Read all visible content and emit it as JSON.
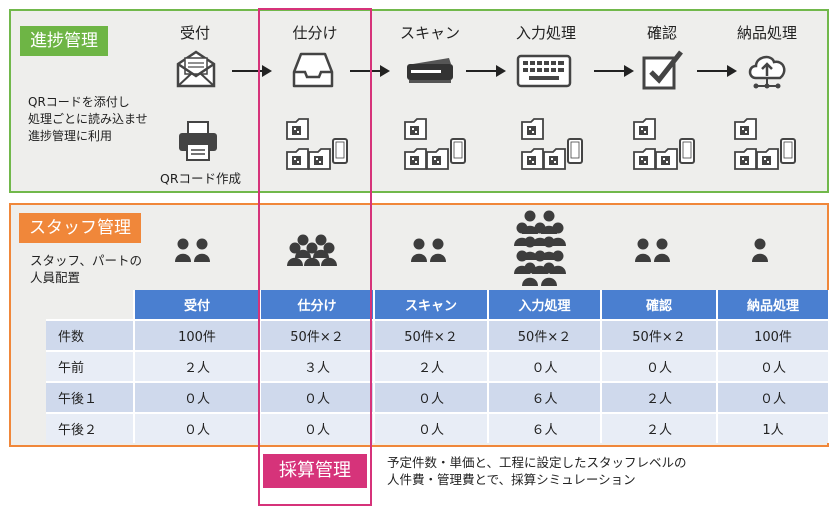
{
  "progress": {
    "title": "進捗管理",
    "stages": [
      "受付",
      "仕分け",
      "スキャン",
      "入力処理",
      "確認",
      "納品処理"
    ],
    "qr_note": [
      "QRコードを添付し",
      "処理ごとに読み込ませ",
      "進捗管理に利用"
    ],
    "qr_create_label": "QRコード作成"
  },
  "staff": {
    "title": "スタッフ管理",
    "note": [
      "スタッフ、パートの",
      "人員配置"
    ],
    "table": {
      "headers": [
        "",
        "受付",
        "仕分け",
        "スキャン",
        "入力処理",
        "確認",
        "納品処理"
      ],
      "rows": [
        [
          "件数",
          "100件",
          "50件×２",
          "50件×２",
          "50件×２",
          "50件×２",
          "100件"
        ],
        [
          "午前",
          "２人",
          "３人",
          "２人",
          "０人",
          "０人",
          "０人"
        ],
        [
          "午後１",
          "０人",
          "０人",
          "０人",
          "６人",
          "２人",
          "０人"
        ],
        [
          "午後２",
          "０人",
          "０人",
          "０人",
          "６人",
          "２人",
          "1人"
        ]
      ]
    }
  },
  "cost": {
    "title": "採算管理",
    "desc": [
      "予定件数・単価と、工程に設定したスタッフレベルの",
      "人件費・管理費とで、採算シミュレーション"
    ]
  },
  "colors": {
    "green": "#6eb545",
    "orange": "#f0873a",
    "magenta": "#d6337a",
    "table_header": "#4a7fd0"
  }
}
